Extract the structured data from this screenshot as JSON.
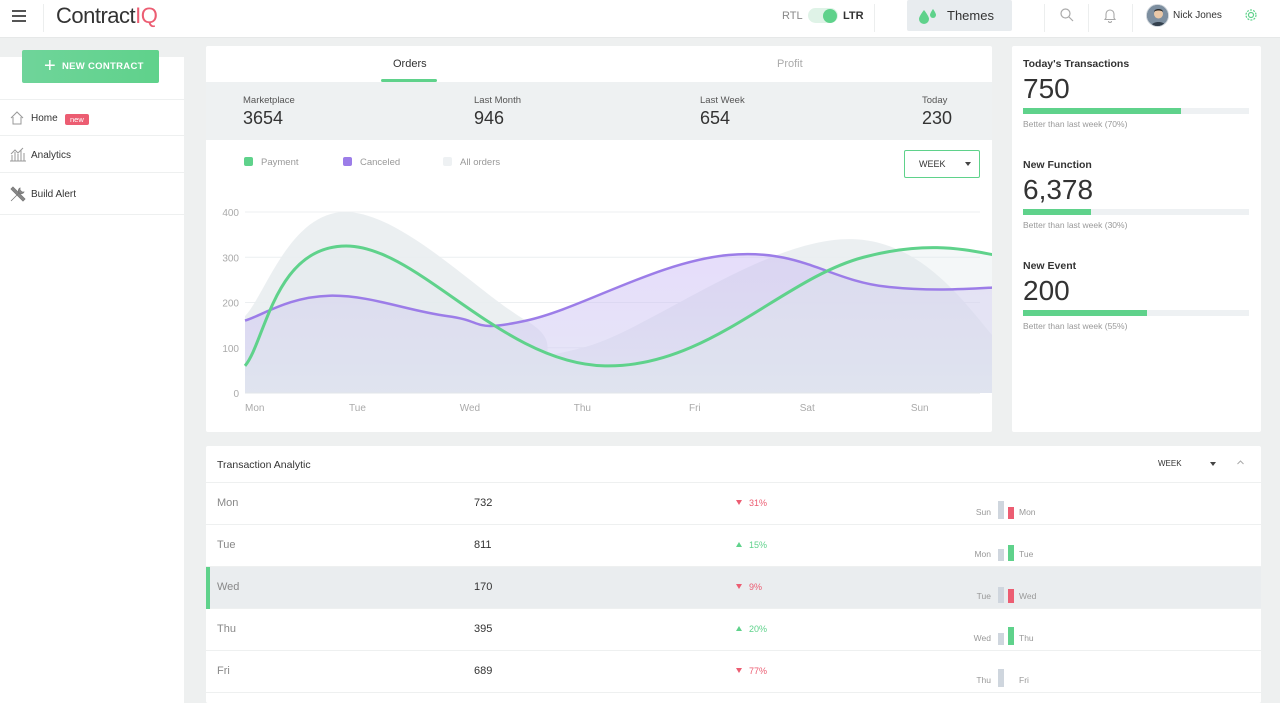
{
  "header": {
    "logo_main": "Contract",
    "logo_accent": "IQ",
    "rtl_label": "RTL",
    "ltr_label": "LTR",
    "themes_label": "Themes",
    "user_name": "Nick Jones"
  },
  "sidebar": {
    "new_contract_label": "NEW CONTRACT",
    "items": [
      {
        "label": "Home",
        "badge": "new"
      },
      {
        "label": "Analytics"
      },
      {
        "label": "Build Alert"
      }
    ]
  },
  "orders_card": {
    "tabs": [
      "Orders",
      "Profit"
    ],
    "active_tab": "Orders",
    "stats": [
      {
        "label": "Marketplace",
        "value": "3654"
      },
      {
        "label": "Last Month",
        "value": "946"
      },
      {
        "label": "Last Week",
        "value": "654"
      },
      {
        "label": "Today",
        "value": "230"
      }
    ],
    "legend": [
      "Payment",
      "Canceled",
      "All orders"
    ],
    "period_select": "WEEK"
  },
  "chart_data": {
    "type": "area",
    "categories": [
      "Mon",
      "Tue",
      "Wed",
      "Thu",
      "Fri",
      "Sat",
      "Sun"
    ],
    "y_ticks": [
      "0",
      "100",
      "200",
      "300",
      "400"
    ],
    "ylim": [
      0,
      400
    ],
    "grid": true,
    "legend_position": "top-left",
    "series": [
      {
        "name": "Payment",
        "color": "#5fd28b",
        "x": [
          0,
          0.9,
          3.2,
          5.5,
          6.85
        ],
        "values": [
          60,
          325,
          60,
          300,
          300
        ]
      },
      {
        "name": "Canceled",
        "color": "#9c7de8",
        "x": [
          0,
          0.75,
          1.8,
          2.5,
          4.3,
          5.7,
          6.85
        ],
        "values": [
          160,
          215,
          170,
          160,
          305,
          235,
          235
        ]
      },
      {
        "name": "All orders",
        "color": "#eef1f3",
        "x": [
          0,
          0.9,
          2.5,
          3.0,
          5.4,
          6.85
        ],
        "values": [
          170,
          400,
          160,
          100,
          340,
          75
        ]
      }
    ]
  },
  "today_transactions": [
    {
      "title": "Today's Transactions",
      "value": "750",
      "progress": 0.7,
      "note": "Better than last week (70%)"
    },
    {
      "title": "New Function",
      "value": "6,378",
      "progress": 0.3,
      "note": "Better than last week (30%)"
    },
    {
      "title": "New Event",
      "value": "200",
      "progress": 0.55,
      "note": "Better than last week (55%)"
    }
  ],
  "transaction_analytic": {
    "title": "Transaction Analytic",
    "period_select": "WEEK",
    "rows": [
      {
        "day": "Mon",
        "value": "732",
        "change": "31%",
        "direction": "down",
        "prev_day": "Sun",
        "cur_day": "Mon"
      },
      {
        "day": "Tue",
        "value": "811",
        "change": "15%",
        "direction": "up",
        "prev_day": "Mon",
        "cur_day": "Tue"
      },
      {
        "day": "Wed",
        "value": "170",
        "change": "9%",
        "direction": "down",
        "prev_day": "Tue",
        "cur_day": "Wed",
        "active": true
      },
      {
        "day": "Thu",
        "value": "395",
        "change": "20%",
        "direction": "up",
        "prev_day": "Wed",
        "cur_day": "Thu"
      },
      {
        "day": "Fri",
        "value": "689",
        "change": "77%",
        "direction": "down",
        "prev_day": "Thu",
        "cur_day": "Fri"
      }
    ]
  },
  "colors": {
    "accent_green": "#5fd28b",
    "accent_red": "#ec5d72",
    "purple": "#9c7de8"
  }
}
